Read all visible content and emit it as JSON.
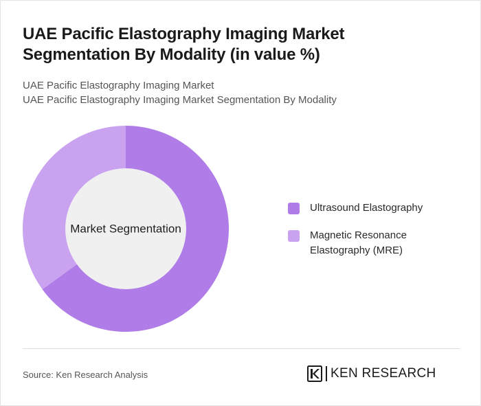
{
  "title": "UAE Pacific Elastography Imaging Market Segmentation By Modality (in value %)",
  "subtitle_lines": [
    "UAE Pacific Elastography Imaging Market",
    "UAE Pacific Elastography Imaging Market Segmentation By Modality"
  ],
  "chart_data": {
    "type": "pie",
    "donut": true,
    "center_label": "Market Segmentation",
    "legend_position": "right",
    "series": [
      {
        "name": "Ultrasound Elastography",
        "value": 65,
        "color": "#b07de8"
      },
      {
        "name": "Magnetic Resonance Elastography (MRE)",
        "value": 35,
        "color": "#c9a2f0"
      }
    ]
  },
  "colors": {
    "hole": "#f0f0f0",
    "divider": "#dedede"
  },
  "footer": {
    "source": "Source: Ken Research Analysis",
    "logo_text": "KEN RESEARCH"
  }
}
